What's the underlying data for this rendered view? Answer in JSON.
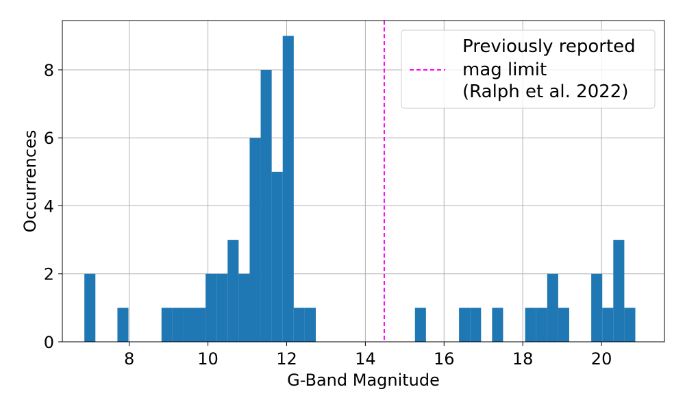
{
  "chart_data": {
    "type": "bar",
    "subtype": "histogram",
    "xlabel": "G-Band Magnitude",
    "ylabel": "Occurrences",
    "xlim": [
      6.3,
      21.6
    ],
    "ylim": [
      0,
      9.45
    ],
    "xticks": [
      "8",
      "10",
      "12",
      "14",
      "16",
      "18",
      "20"
    ],
    "yticks": [
      "0",
      "2",
      "4",
      "6",
      "8"
    ],
    "grid": true,
    "bar_color": "#1f77b4",
    "bin_width": 0.28,
    "bins": [
      {
        "x": 7.0,
        "count": 2
      },
      {
        "x": 7.84,
        "count": 1
      },
      {
        "x": 8.96,
        "count": 1
      },
      {
        "x": 9.24,
        "count": 1
      },
      {
        "x": 9.52,
        "count": 1
      },
      {
        "x": 9.8,
        "count": 1
      },
      {
        "x": 10.08,
        "count": 2
      },
      {
        "x": 10.36,
        "count": 2
      },
      {
        "x": 10.64,
        "count": 3
      },
      {
        "x": 10.92,
        "count": 2
      },
      {
        "x": 11.2,
        "count": 6
      },
      {
        "x": 11.48,
        "count": 8
      },
      {
        "x": 11.76,
        "count": 5
      },
      {
        "x": 12.04,
        "count": 9
      },
      {
        "x": 12.32,
        "count": 1
      },
      {
        "x": 12.6,
        "count": 1
      },
      {
        "x": 15.4,
        "count": 1
      },
      {
        "x": 16.52,
        "count": 1
      },
      {
        "x": 16.8,
        "count": 1
      },
      {
        "x": 17.36,
        "count": 1
      },
      {
        "x": 18.2,
        "count": 1
      },
      {
        "x": 18.48,
        "count": 1
      },
      {
        "x": 18.76,
        "count": 2
      },
      {
        "x": 19.04,
        "count": 1
      },
      {
        "x": 19.88,
        "count": 2
      },
      {
        "x": 20.16,
        "count": 1
      },
      {
        "x": 20.44,
        "count": 3
      },
      {
        "x": 20.72,
        "count": 1
      }
    ],
    "reference_line": {
      "x": 14.48,
      "style": "dashed",
      "color": "#ff00ff"
    },
    "legend": {
      "position": "top-right",
      "lines": [
        "Previously reported",
        "mag limit",
        "(Ralph et al. 2022)"
      ]
    }
  }
}
